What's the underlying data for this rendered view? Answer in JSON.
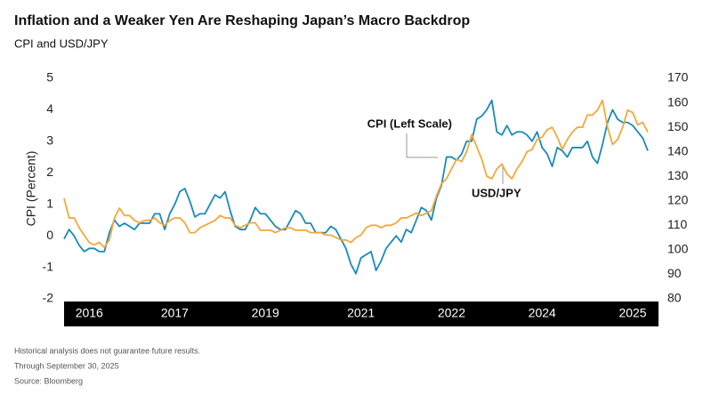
{
  "chart_data": {
    "type": "line",
    "title": "Inflation and a Weaker Yen Are Reshaping Japan’s Macro Backdrop",
    "subtitle": "CPI and USD/JPY",
    "y_label": "CPI (Percent)",
    "annotations": [
      "CPI (Left Scale)",
      "USD/JPY"
    ],
    "notes": [
      "Historical analysis does not guarantee future results.",
      "Through September 30, 2025",
      "Source: Bloomberg"
    ],
    "categories": [
      null,
      null,
      null,
      null,
      null,
      "2016",
      null,
      null,
      null,
      null,
      null,
      null,
      null,
      null,
      null,
      null,
      null,
      null,
      null,
      null,
      null,
      null,
      "2017",
      null,
      null,
      null,
      null,
      null,
      null,
      null,
      null,
      null,
      null,
      null,
      null,
      null,
      null,
      null,
      null,
      null,
      "2019",
      null,
      null,
      null,
      null,
      null,
      null,
      null,
      null,
      null,
      null,
      null,
      null,
      null,
      null,
      null,
      null,
      null,
      null,
      "2021",
      null,
      null,
      null,
      null,
      null,
      null,
      null,
      null,
      null,
      null,
      null,
      null,
      null,
      null,
      null,
      null,
      null,
      "2022",
      null,
      null,
      null,
      null,
      null,
      null,
      null,
      null,
      null,
      null,
      null,
      null,
      null,
      null,
      null,
      null,
      null,
      "2024",
      null,
      null,
      null,
      null,
      null,
      null,
      null,
      null,
      null,
      null,
      null,
      null,
      null,
      null,
      null,
      null,
      null,
      "2025",
      null,
      null,
      null
    ],
    "series": [
      {
        "name": "CPI (Left Scale)",
        "color": "#1a8bb8",
        "values": [
          -0.1,
          0.2,
          0.0,
          -0.3,
          -0.5,
          -0.4,
          -0.4,
          -0.5,
          -0.5,
          0.1,
          0.5,
          0.3,
          0.4,
          0.3,
          0.2,
          0.4,
          0.4,
          0.4,
          0.7,
          0.7,
          0.2,
          0.7,
          1.0,
          1.4,
          1.5,
          1.1,
          0.6,
          0.7,
          0.7,
          1.0,
          1.3,
          1.2,
          1.4,
          0.8,
          0.3,
          0.2,
          0.2,
          0.5,
          0.9,
          0.7,
          0.7,
          0.5,
          0.3,
          0.2,
          0.2,
          0.5,
          0.8,
          0.7,
          0.4,
          0.4,
          0.1,
          0.1,
          0.1,
          0.3,
          0.2,
          -0.1,
          -0.4,
          -0.9,
          -1.2,
          -0.7,
          -0.6,
          -0.5,
          -1.1,
          -0.8,
          -0.4,
          -0.2,
          0.0,
          -0.2,
          0.2,
          0.1,
          0.5,
          0.9,
          0.8,
          0.5,
          1.2,
          1.6,
          2.5,
          2.5,
          2.4,
          2.6,
          3.0,
          3.0,
          3.7,
          3.8,
          4.0,
          4.3,
          3.3,
          3.2,
          3.5,
          3.2,
          3.3,
          3.3,
          3.2,
          3.0,
          3.3,
          2.8,
          2.6,
          2.2,
          2.8,
          2.7,
          2.5,
          2.8,
          2.8,
          2.8,
          3.0,
          2.5,
          2.3,
          2.9,
          3.6,
          4.0,
          3.7,
          3.6,
          3.6,
          3.5,
          3.3,
          3.1,
          2.7
        ]
      },
      {
        "name": "USD/JPY",
        "color": "#f2a93b",
        "axis": "y2",
        "values": [
          121,
          113,
          113,
          109,
          106,
          103,
          102,
          103,
          101,
          104,
          113,
          117,
          114,
          114,
          112,
          111,
          112,
          112,
          113,
          111,
          110,
          112,
          113,
          113,
          111,
          107,
          107,
          109,
          110,
          111,
          112,
          114,
          113,
          113,
          110,
          109,
          110,
          111,
          111,
          108,
          108,
          108,
          107,
          108,
          109,
          109,
          108,
          108,
          108,
          107,
          107,
          107,
          106,
          106,
          105,
          104,
          104,
          103,
          105,
          106,
          109,
          110,
          110,
          109,
          110,
          110,
          111,
          113,
          113,
          114,
          115,
          114,
          115,
          116,
          122,
          127,
          129,
          133,
          137,
          136,
          140,
          147,
          142,
          137,
          130,
          129,
          133,
          135,
          131,
          129,
          133,
          136,
          140,
          141,
          145,
          146,
          149,
          150,
          146,
          141,
          145,
          148,
          150,
          150,
          155,
          155,
          157,
          161,
          150,
          143,
          145,
          150,
          157,
          156,
          151,
          152,
          148
        ]
      }
    ],
    "ylim": [
      -2,
      5
    ],
    "yticks": [
      -2,
      -1,
      0,
      1,
      2,
      3,
      4,
      5
    ],
    "y2lim": [
      80,
      170
    ],
    "y2ticks": [
      80,
      90,
      100,
      110,
      120,
      130,
      140,
      150,
      160,
      170
    ],
    "grid": false
  }
}
